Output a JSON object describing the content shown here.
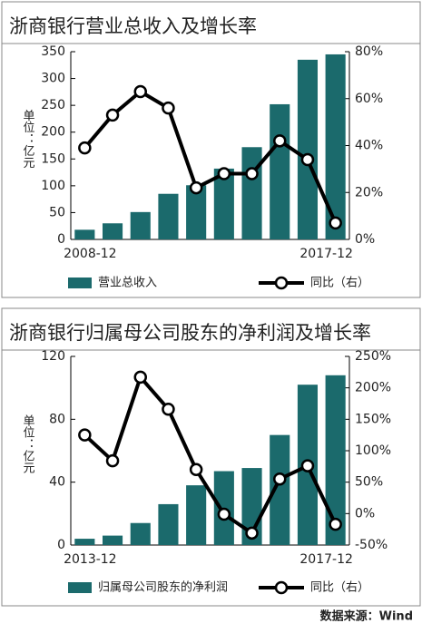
{
  "chart_data": [
    {
      "type": "bar_line",
      "title": "浙商银行营业总收入及增长率",
      "y_label": "单位：亿元",
      "categories": [
        "2008-12",
        null,
        null,
        null,
        null,
        null,
        null,
        null,
        null,
        "2017-12"
      ],
      "series": [
        {
          "name": "营业总收入",
          "color": "#1b6a6c",
          "values": [
            18,
            30,
            51,
            85,
            101,
            132,
            172,
            252,
            335,
            345
          ]
        },
        {
          "name": "同比（右）",
          "color": "#000000",
          "axis": "y2",
          "values": [
            39,
            53,
            63,
            56,
            22,
            28,
            28,
            42,
            34,
            7
          ]
        }
      ],
      "ylim": [
        0,
        350
      ],
      "yticks": [
        0,
        50,
        100,
        150,
        200,
        250,
        300,
        350
      ],
      "y2lim": [
        0,
        80
      ],
      "y2ticks": [
        {
          "value": 0,
          "label": "0%"
        },
        {
          "value": 20,
          "label": "20%"
        },
        {
          "value": 40,
          "label": "40%"
        },
        {
          "value": 60,
          "label": "60%"
        },
        {
          "value": 80,
          "label": "80%"
        }
      ]
    },
    {
      "type": "bar_line",
      "title": "浙商银行归属母公司股东的净利润及增长率",
      "y_label": "单位：亿元",
      "categories": [
        "2013-12",
        null,
        null,
        null,
        null,
        null,
        null,
        null,
        null,
        "2017-12"
      ],
      "series": [
        {
          "name": "归属母公司股东的净利润",
          "color": "#1b6a6c",
          "values": [
            4,
            6,
            14,
            26,
            38,
            47,
            49,
            70,
            102,
            108
          ]
        },
        {
          "name": "同比（右）",
          "color": "#000000",
          "axis": "y2",
          "values": [
            125,
            84,
            217,
            166,
            70,
            -1,
            -31,
            55,
            76,
            -17
          ]
        }
      ],
      "ylim": [
        0,
        120
      ],
      "yticks": [
        0,
        40,
        80,
        120
      ],
      "y2lim": [
        -50,
        250
      ],
      "y2ticks": [
        {
          "value": -50,
          "label": "-50%"
        },
        {
          "value": 0,
          "label": "0%"
        },
        {
          "value": 50,
          "label": "50%"
        },
        {
          "value": 100,
          "label": "100%"
        },
        {
          "value": 150,
          "label": "150%"
        },
        {
          "value": 200,
          "label": "200%"
        },
        {
          "value": 250,
          "label": "250%"
        }
      ]
    }
  ],
  "source": "数据来源：Wind"
}
